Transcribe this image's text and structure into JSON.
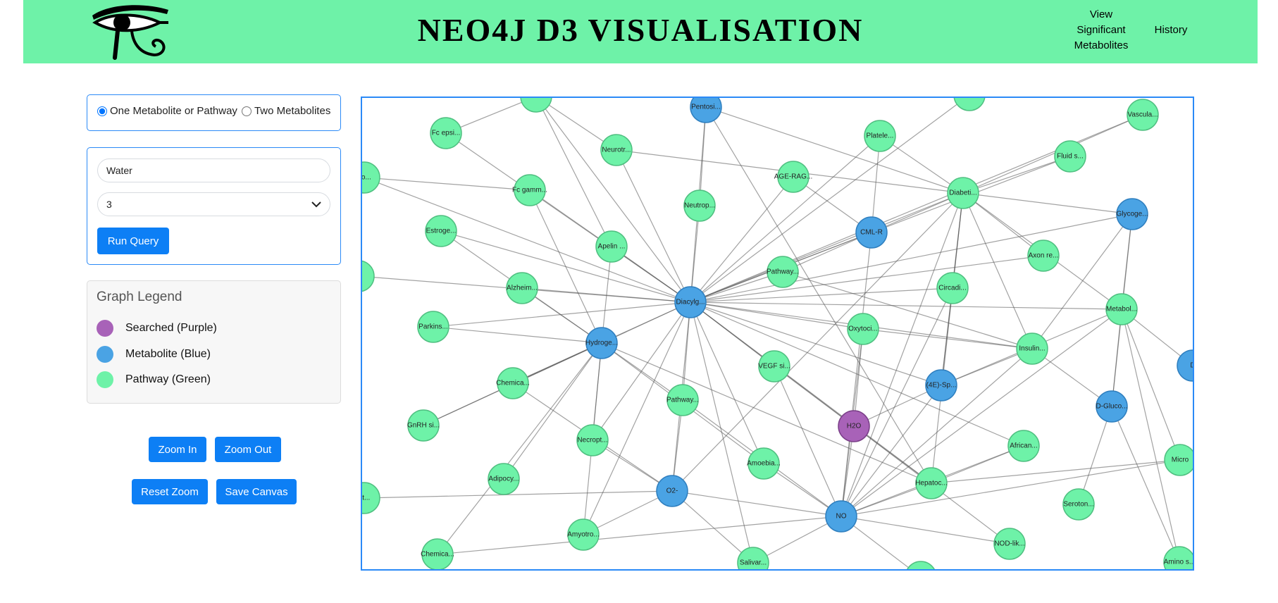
{
  "header": {
    "title": "NEO4J D3 VISUALISATION",
    "nav": {
      "significant_line1": "View",
      "significant_line2": "Significant",
      "significant_line3": "Metabolites",
      "history": "History"
    },
    "logo_icon": "eye-of-horus-icon"
  },
  "mode": {
    "option_one": "One Metabolite or Pathway",
    "option_two": "Two Metabolites",
    "selected": "one"
  },
  "query": {
    "search_value": "Water",
    "depth_value": "3",
    "run_label": "Run Query"
  },
  "legend": {
    "title": "Graph Legend",
    "items": [
      {
        "label": "Searched (Purple)",
        "color": "#a862b8"
      },
      {
        "label": "Metabolite (Blue)",
        "color": "#4aa3e4"
      },
      {
        "label": "Pathway (Green)",
        "color": "#6ef2a8"
      }
    ]
  },
  "controls": {
    "zoom_in": "Zoom In",
    "zoom_out": "Zoom Out",
    "reset_zoom": "Reset Zoom",
    "save_canvas": "Save Canvas"
  },
  "colors": {
    "header_bg": "#6ef2a8",
    "accent": "#0d7ff5",
    "searched": "#a862b8",
    "metabolite": "#4aa3e4",
    "pathway": "#6ef2a8"
  },
  "graph": {
    "nodes": [
      {
        "id": "h2o",
        "label": "H2O",
        "type": "searched"
      },
      {
        "id": "diacylg",
        "label": "Diacylg...",
        "type": "metabolite"
      },
      {
        "id": "hydroge",
        "label": "Hydroge...",
        "type": "metabolite"
      },
      {
        "id": "cmlr",
        "label": "CML-R",
        "type": "metabolite"
      },
      {
        "id": "o2",
        "label": "O2-",
        "type": "metabolite"
      },
      {
        "id": "no",
        "label": "NO",
        "type": "metabolite"
      },
      {
        "id": "4esp",
        "label": "(4E)-Sp...",
        "type": "metabolite"
      },
      {
        "id": "dgluco",
        "label": "D-Gluco...",
        "type": "metabolite"
      },
      {
        "id": "glycoge",
        "label": "Glycoge...",
        "type": "metabolite"
      },
      {
        "id": "pentosi",
        "label": "Pentosi...",
        "type": "metabolite"
      },
      {
        "id": "d_edge",
        "label": "D",
        "type": "metabolite"
      },
      {
        "id": "fcepsi",
        "label": "Fc epsi...",
        "type": "pathway"
      },
      {
        "id": "neurotr",
        "label": "Neurotr...",
        "type": "pathway"
      },
      {
        "id": "platele",
        "label": "Platele...",
        "type": "pathway"
      },
      {
        "id": "vascula",
        "label": "Vascula...",
        "type": "pathway"
      },
      {
        "id": "fluids",
        "label": "Fluid s...",
        "type": "pathway"
      },
      {
        "id": "agerag",
        "label": "AGE-RAG...",
        "type": "pathway"
      },
      {
        "id": "diabeti",
        "label": "Diabeti...",
        "type": "pathway"
      },
      {
        "id": "fcgamm",
        "label": "Fc gamm...",
        "type": "pathway"
      },
      {
        "id": "neutrop",
        "label": "Neutrop...",
        "type": "pathway"
      },
      {
        "id": "estroge",
        "label": "Estroge...",
        "type": "pathway"
      },
      {
        "id": "apelin",
        "label": "Apelin ...",
        "type": "pathway"
      },
      {
        "id": "axonre",
        "label": "Axon re...",
        "type": "pathway"
      },
      {
        "id": "pathway1",
        "label": "Pathway...",
        "type": "pathway"
      },
      {
        "id": "alzheim",
        "label": "Alzheim...",
        "type": "pathway"
      },
      {
        "id": "circadi",
        "label": "Circadi...",
        "type": "pathway"
      },
      {
        "id": "metabol",
        "label": "Metabol...",
        "type": "pathway"
      },
      {
        "id": "parkins",
        "label": "Parkins...",
        "type": "pathway"
      },
      {
        "id": "oxytoci",
        "label": "Oxytoci...",
        "type": "pathway"
      },
      {
        "id": "insulin",
        "label": "Insulin...",
        "type": "pathway"
      },
      {
        "id": "vegfsi",
        "label": "VEGF si...",
        "type": "pathway"
      },
      {
        "id": "chemica1",
        "label": "Chemica...",
        "type": "pathway"
      },
      {
        "id": "pathway2",
        "label": "Pathway...",
        "type": "pathway"
      },
      {
        "id": "gnrhsi",
        "label": "GnRH si...",
        "type": "pathway"
      },
      {
        "id": "necropt",
        "label": "Necropt...",
        "type": "pathway"
      },
      {
        "id": "african",
        "label": "African...",
        "type": "pathway"
      },
      {
        "id": "adipocy",
        "label": "Adipocy...",
        "type": "pathway"
      },
      {
        "id": "amoebia",
        "label": "Amoebia...",
        "type": "pathway"
      },
      {
        "id": "hepatoc",
        "label": "Hepatoc...",
        "type": "pathway"
      },
      {
        "id": "micro",
        "label": "Micro",
        "type": "pathway"
      },
      {
        "id": "seroton",
        "label": "Seroton...",
        "type": "pathway"
      },
      {
        "id": "amyotro",
        "label": "Amyotro...",
        "type": "pathway"
      },
      {
        "id": "nodlik",
        "label": "NOD-lik...",
        "type": "pathway"
      },
      {
        "id": "chemica2",
        "label": "Chemica...",
        "type": "pathway"
      },
      {
        "id": "salivar",
        "label": "Salivar...",
        "type": "pathway"
      },
      {
        "id": "aminos",
        "label": "Amino s...",
        "type": "pathway"
      },
      {
        "id": "go_edge",
        "label": "go...",
        "type": "pathway"
      },
      {
        "id": "at_edge",
        "label": "at...",
        "type": "pathway"
      },
      {
        "id": "top1",
        "label": "",
        "type": "pathway"
      },
      {
        "id": "top2",
        "label": "",
        "type": "pathway"
      },
      {
        "id": "left1",
        "label": "",
        "type": "pathway"
      },
      {
        "id": "bot1",
        "label": "",
        "type": "pathway"
      }
    ],
    "edges": [
      [
        "diacylg",
        "fcepsi"
      ],
      [
        "diacylg",
        "neurotr"
      ],
      [
        "diacylg",
        "fcgamm"
      ],
      [
        "diacylg",
        "neutrop"
      ],
      [
        "diacylg",
        "estroge"
      ],
      [
        "diacylg",
        "apelin"
      ],
      [
        "diacylg",
        "alzheim"
      ],
      [
        "diacylg",
        "parkins"
      ],
      [
        "diacylg",
        "chemica1"
      ],
      [
        "diacylg",
        "pathway2"
      ],
      [
        "diacylg",
        "vegfsi"
      ],
      [
        "diacylg",
        "pathway1"
      ],
      [
        "diacylg",
        "agerag"
      ],
      [
        "diacylg",
        "platele"
      ],
      [
        "diacylg",
        "diabeti"
      ],
      [
        "diacylg",
        "cmlr"
      ],
      [
        "diacylg",
        "oxytoci"
      ],
      [
        "diacylg",
        "circadi"
      ],
      [
        "diacylg",
        "insulin"
      ],
      [
        "diacylg",
        "metabol"
      ],
      [
        "diacylg",
        "glycoge"
      ],
      [
        "diacylg",
        "fluids"
      ],
      [
        "diacylg",
        "vascula"
      ],
      [
        "diacylg",
        "axonre"
      ],
      [
        "diacylg",
        "pentosi"
      ],
      [
        "diacylg",
        "gnrhsi"
      ],
      [
        "diacylg",
        "necropt"
      ],
      [
        "diacylg",
        "amoebia"
      ],
      [
        "diacylg",
        "o2"
      ],
      [
        "diacylg",
        "hepatoc"
      ],
      [
        "diacylg",
        "salivar"
      ],
      [
        "diacylg",
        "amyotro"
      ],
      [
        "diacylg",
        "go_edge"
      ],
      [
        "diacylg",
        "left1"
      ],
      [
        "diacylg",
        "top1"
      ],
      [
        "diacylg",
        "top2"
      ],
      [
        "diacylg",
        "4esp"
      ],
      [
        "diacylg",
        "african"
      ],
      [
        "diacylg",
        "nodlik"
      ],
      [
        "hydroge",
        "alzheim"
      ],
      [
        "hydroge",
        "parkins"
      ],
      [
        "hydroge",
        "chemica1"
      ],
      [
        "hydroge",
        "necropt"
      ],
      [
        "hydroge",
        "pathway2"
      ],
      [
        "hydroge",
        "amoebia"
      ],
      [
        "hydroge",
        "apelin"
      ],
      [
        "hydroge",
        "fcgamm"
      ],
      [
        "hydroge",
        "gnrhsi"
      ],
      [
        "hydroge",
        "adipocy"
      ],
      [
        "hydroge",
        "amyotro"
      ],
      [
        "hydroge",
        "chemica2"
      ],
      [
        "hydroge",
        "hepatoc"
      ],
      [
        "hydroge",
        "estroge"
      ],
      [
        "no",
        "h2o"
      ],
      [
        "no",
        "oxytoci"
      ],
      [
        "no",
        "diabeti"
      ],
      [
        "no",
        "cmlr"
      ],
      [
        "no",
        "4esp"
      ],
      [
        "no",
        "hepatoc"
      ],
      [
        "no",
        "african"
      ],
      [
        "no",
        "nodlik"
      ],
      [
        "no",
        "salivar"
      ],
      [
        "no",
        "amoebia"
      ],
      [
        "no",
        "pathway2"
      ],
      [
        "no",
        "vegfsi"
      ],
      [
        "no",
        "o2"
      ],
      [
        "no",
        "metabol"
      ],
      [
        "no",
        "insulin"
      ],
      [
        "no",
        "circadi"
      ],
      [
        "no",
        "bot1"
      ],
      [
        "no",
        "chemica2"
      ],
      [
        "no",
        "micro"
      ],
      [
        "o2",
        "necropt"
      ],
      [
        "o2",
        "amyotro"
      ],
      [
        "o2",
        "pathway2"
      ],
      [
        "o2",
        "salivar"
      ],
      [
        "o2",
        "chemica1"
      ],
      [
        "o2",
        "at_edge"
      ],
      [
        "h2o",
        "4esp"
      ],
      [
        "h2o",
        "oxytoci"
      ],
      [
        "h2o",
        "vegfsi"
      ],
      [
        "h2o",
        "hepatoc"
      ],
      [
        "cmlr",
        "diabeti"
      ],
      [
        "cmlr",
        "agerag"
      ],
      [
        "cmlr",
        "pathway1"
      ],
      [
        "cmlr",
        "platele"
      ],
      [
        "4esp",
        "insulin"
      ],
      [
        "4esp",
        "circadi"
      ],
      [
        "4esp",
        "diabeti"
      ],
      [
        "4esp",
        "metabol"
      ],
      [
        "dgluco",
        "metabol"
      ],
      [
        "dgluco",
        "glycoge"
      ],
      [
        "dgluco",
        "seroton"
      ],
      [
        "dgluco",
        "aminos"
      ],
      [
        "dgluco",
        "insulin"
      ],
      [
        "glycoge",
        "diabeti"
      ],
      [
        "glycoge",
        "metabol"
      ],
      [
        "glycoge",
        "insulin"
      ],
      [
        "diabeti",
        "fluids"
      ],
      [
        "diabeti",
        "vascula"
      ],
      [
        "diabeti",
        "platele"
      ],
      [
        "diabeti",
        "axonre"
      ],
      [
        "diabeti",
        "metabol"
      ],
      [
        "diabeti",
        "insulin"
      ],
      [
        "diabeti",
        "circadi"
      ],
      [
        "diabeti",
        "hepatoc"
      ],
      [
        "diabeti",
        "o2"
      ],
      [
        "diabeti",
        "neurotr"
      ],
      [
        "pentosi",
        "hepatoc"
      ],
      [
        "pentosi",
        "diabeti"
      ],
      [
        "metabol",
        "d_edge"
      ],
      [
        "metabol",
        "micro"
      ],
      [
        "metabol",
        "aminos"
      ],
      [
        "hepatoc",
        "african"
      ],
      [
        "hepatoc",
        "micro"
      ],
      [
        "insulin",
        "oxytoci"
      ],
      [
        "insulin",
        "pathway1"
      ],
      [
        "fcgamm",
        "go_edge"
      ],
      [
        "fcepsi",
        "top1"
      ],
      [
        "neurotr",
        "top1"
      ],
      [
        "neutrop",
        "pentosi"
      ],
      [
        "apelin",
        "top1"
      ]
    ]
  }
}
